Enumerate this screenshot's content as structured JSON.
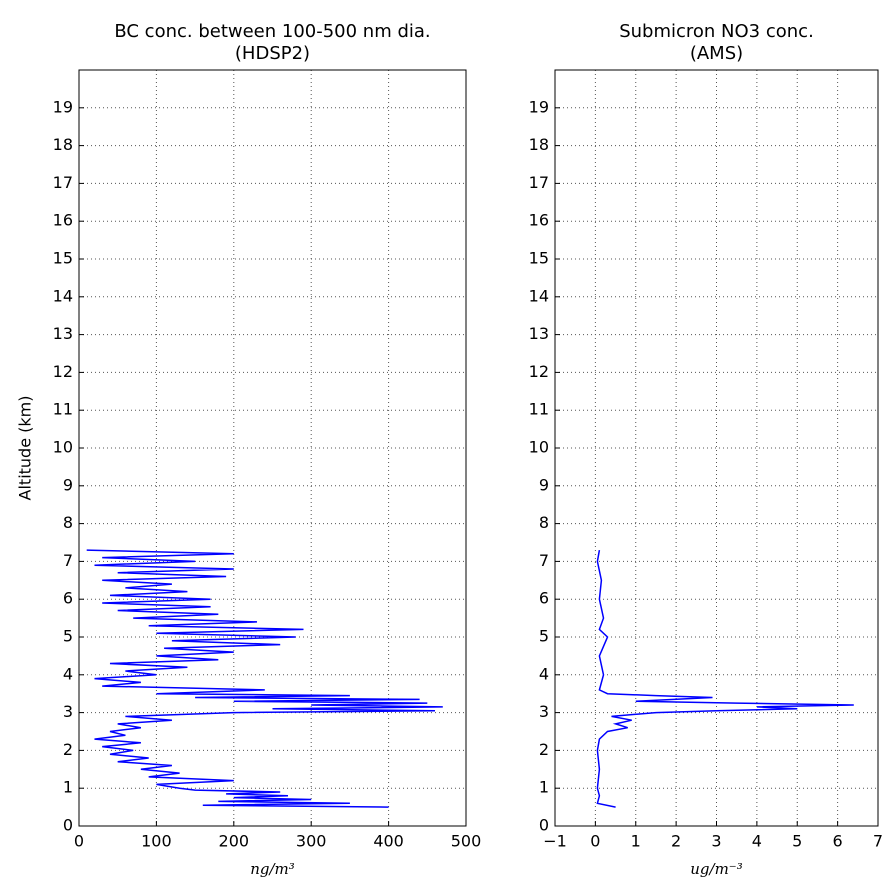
{
  "chart_data": [
    {
      "type": "line",
      "title": "BC conc. between 100-500 nm dia.",
      "subtitle": "(HDSP2)",
      "xlabel": "ng/m³",
      "ylabel": "Altitude (km)",
      "xlim": [
        0,
        500
      ],
      "xticks": [
        0,
        100,
        200,
        300,
        400,
        500
      ],
      "ylim": [
        0,
        20
      ],
      "yticks": [
        0,
        1,
        2,
        3,
        4,
        5,
        6,
        7,
        8,
        9,
        10,
        11,
        12,
        13,
        14,
        15,
        16,
        17,
        18,
        19
      ],
      "grid": true,
      "series": [
        {
          "color": "#0000ff",
          "x": [
            400,
            160,
            350,
            180,
            300,
            200,
            270,
            190,
            260,
            150,
            130,
            100,
            200,
            90,
            130,
            80,
            120,
            50,
            90,
            40,
            70,
            30,
            80,
            20,
            60,
            40,
            80,
            50,
            120,
            60,
            200,
            460,
            250,
            470,
            300,
            450,
            200,
            440,
            150,
            350,
            100,
            240,
            30,
            80,
            20,
            100,
            60,
            140,
            40,
            180,
            100,
            200,
            110,
            260,
            120,
            280,
            100,
            290,
            90,
            230,
            70,
            180,
            50,
            170,
            30,
            170,
            40,
            140,
            60,
            120,
            30,
            190,
            50,
            200,
            20,
            150,
            30,
            200,
            10
          ],
          "values": [
            0.5,
            0.55,
            0.6,
            0.65,
            0.7,
            0.75,
            0.8,
            0.85,
            0.9,
            0.95,
            1.0,
            1.1,
            1.2,
            1.3,
            1.4,
            1.5,
            1.6,
            1.7,
            1.8,
            1.9,
            2.0,
            2.1,
            2.2,
            2.3,
            2.4,
            2.5,
            2.6,
            2.7,
            2.8,
            2.9,
            3.0,
            3.05,
            3.1,
            3.15,
            3.2,
            3.25,
            3.3,
            3.35,
            3.4,
            3.45,
            3.5,
            3.6,
            3.7,
            3.8,
            3.9,
            4.0,
            4.1,
            4.2,
            4.3,
            4.4,
            4.5,
            4.6,
            4.7,
            4.8,
            4.9,
            5.0,
            5.1,
            5.2,
            5.3,
            5.4,
            5.5,
            5.6,
            5.7,
            5.8,
            5.9,
            6.0,
            6.1,
            6.2,
            6.3,
            6.4,
            6.5,
            6.6,
            6.7,
            6.8,
            6.9,
            7.0,
            7.1,
            7.2,
            7.3
          ]
        }
      ]
    },
    {
      "type": "line",
      "title": "Submicron NO3 conc.",
      "subtitle": "(AMS)",
      "xlabel": "ug/m⁻³",
      "xlim": [
        -1,
        7
      ],
      "xticks": [
        {
          "value": -1,
          "label": "−1"
        },
        0,
        1,
        2,
        3,
        4,
        5,
        6,
        7
      ],
      "ylim": [
        0,
        20
      ],
      "yticks": [
        0,
        1,
        2,
        3,
        4,
        5,
        6,
        7,
        8,
        9,
        10,
        11,
        12,
        13,
        14,
        15,
        16,
        17,
        18,
        19
      ],
      "grid": true,
      "series": [
        {
          "color": "#0000ff",
          "x": [
            0.5,
            0.05,
            0.1,
            0.05,
            0.1,
            0.05,
            0.1,
            0.3,
            0.8,
            0.5,
            0.9,
            0.4,
            1.5,
            3.0,
            5.0,
            4.0,
            6.4,
            3.5,
            1.0,
            2.9,
            1.5,
            0.3,
            0.1,
            0.2,
            0.1,
            0.3,
            0.1,
            0.2,
            0.1,
            0.15,
            0.05,
            0.1
          ],
          "values": [
            0.5,
            0.6,
            0.8,
            1.0,
            1.5,
            2.0,
            2.3,
            2.5,
            2.6,
            2.7,
            2.8,
            2.9,
            3.0,
            3.05,
            3.1,
            3.15,
            3.2,
            3.25,
            3.3,
            3.4,
            3.45,
            3.5,
            3.6,
            4.0,
            4.5,
            5.0,
            5.2,
            5.5,
            6.0,
            6.5,
            7.0,
            7.3
          ]
        }
      ]
    }
  ]
}
